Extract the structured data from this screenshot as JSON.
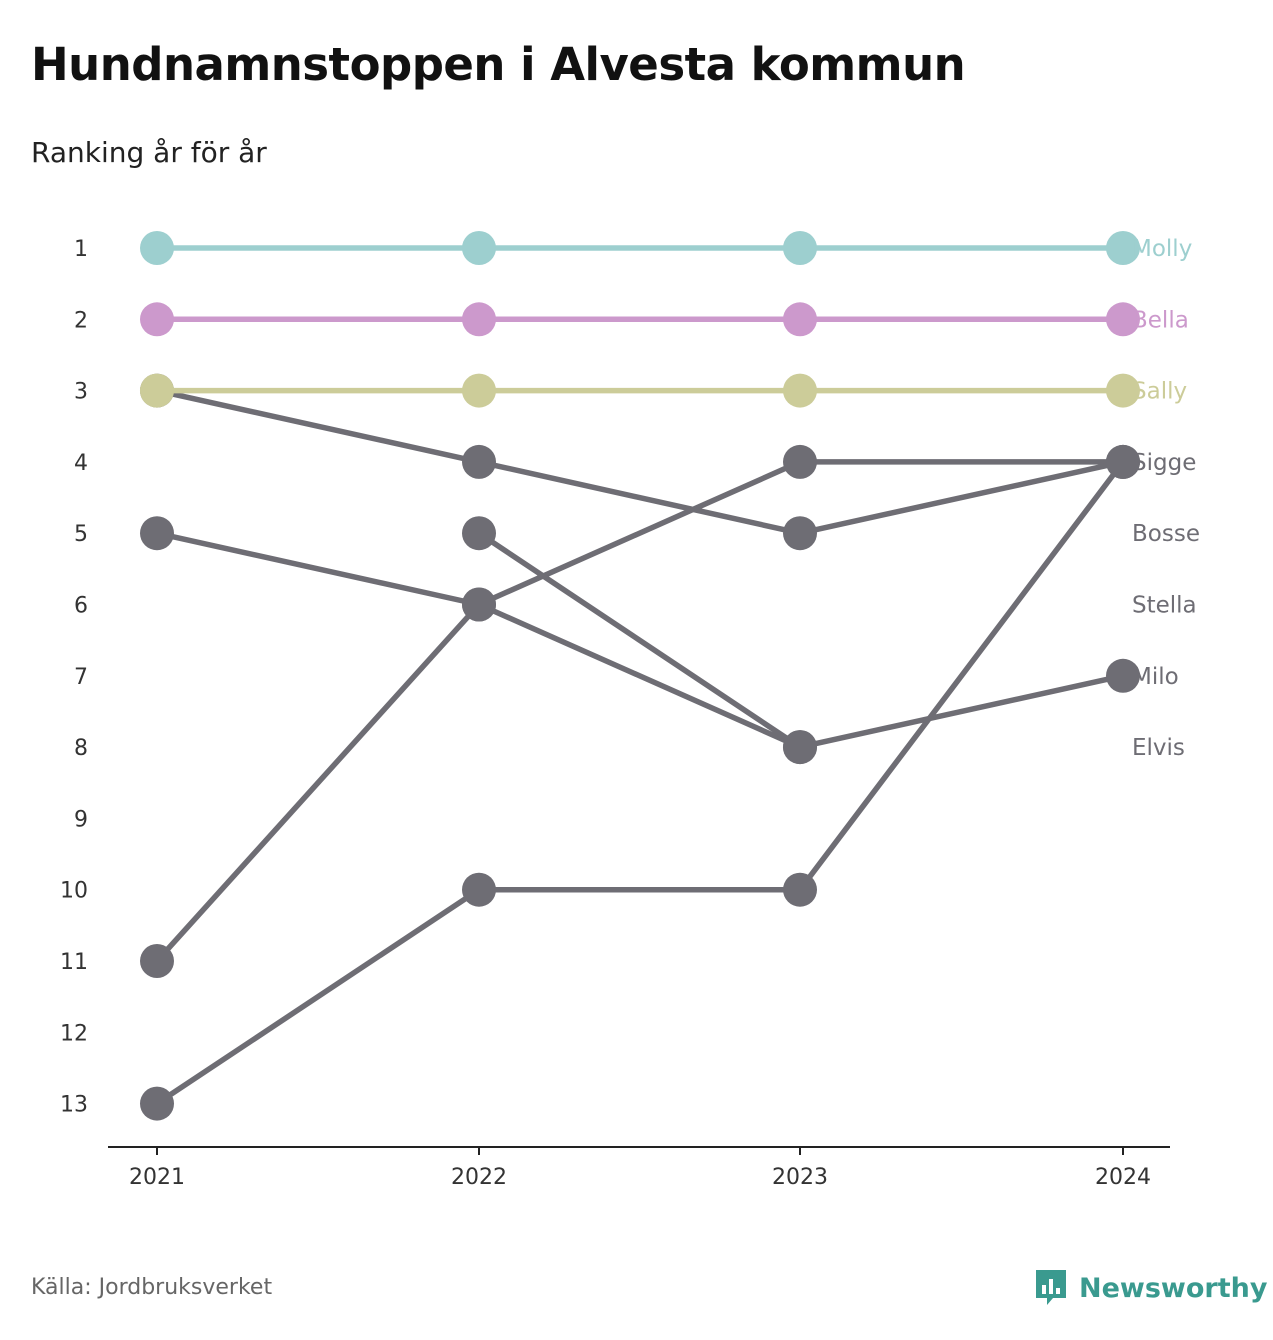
{
  "header": {
    "title": "Hundnamnstoppen i Alvesta kommun",
    "subtitle": "Ranking år för år"
  },
  "footer": {
    "source": "Källa: Jordbruksverket",
    "brand": "Newsworthy",
    "brand_icon": "newsworthy-logo-icon"
  },
  "colors": {
    "molly": "#9dcfcf",
    "bella": "#cc99cc",
    "sally": "#cccc99",
    "gray": "#6e6d74",
    "brand": "#3a9a8f"
  },
  "chart_data": {
    "type": "line",
    "subtype": "bump",
    "title": "Hundnamnstoppen i Alvesta kommun",
    "subtitle": "Ranking år för år",
    "x": [
      "2021",
      "2022",
      "2023",
      "2024"
    ],
    "y_ticks": [
      "1",
      "2",
      "3",
      "4",
      "5",
      "6",
      "7",
      "8",
      "9",
      "10",
      "11",
      "12",
      "13"
    ],
    "ylim": [
      1,
      13
    ],
    "y_inverted": true,
    "grid": false,
    "series": [
      {
        "name": "Molly",
        "values": [
          1,
          1,
          1,
          1
        ],
        "color": "#9dcfcf"
      },
      {
        "name": "Bella",
        "values": [
          2,
          2,
          2,
          2
        ],
        "color": "#cc99cc"
      },
      {
        "name": "Sally",
        "values": [
          3,
          3,
          3,
          3
        ],
        "color": "#cccc99"
      },
      {
        "name": "Sigge",
        "values": [
          11,
          6,
          4,
          4
        ],
        "color": "#6e6d74"
      },
      {
        "name": "Bosse",
        "values": [
          3,
          4,
          5,
          4
        ],
        "color": "#6e6d74"
      },
      {
        "name": "Stella",
        "values": [
          13,
          10,
          10,
          4
        ],
        "color": "#6e6d74"
      },
      {
        "name": "Milo",
        "values": [
          5,
          6,
          8,
          7
        ],
        "color": "#6e6d74"
      },
      {
        "name": "Elvis",
        "values": [
          null,
          5,
          8,
          null
        ],
        "color": "#6e6d74"
      }
    ]
  }
}
